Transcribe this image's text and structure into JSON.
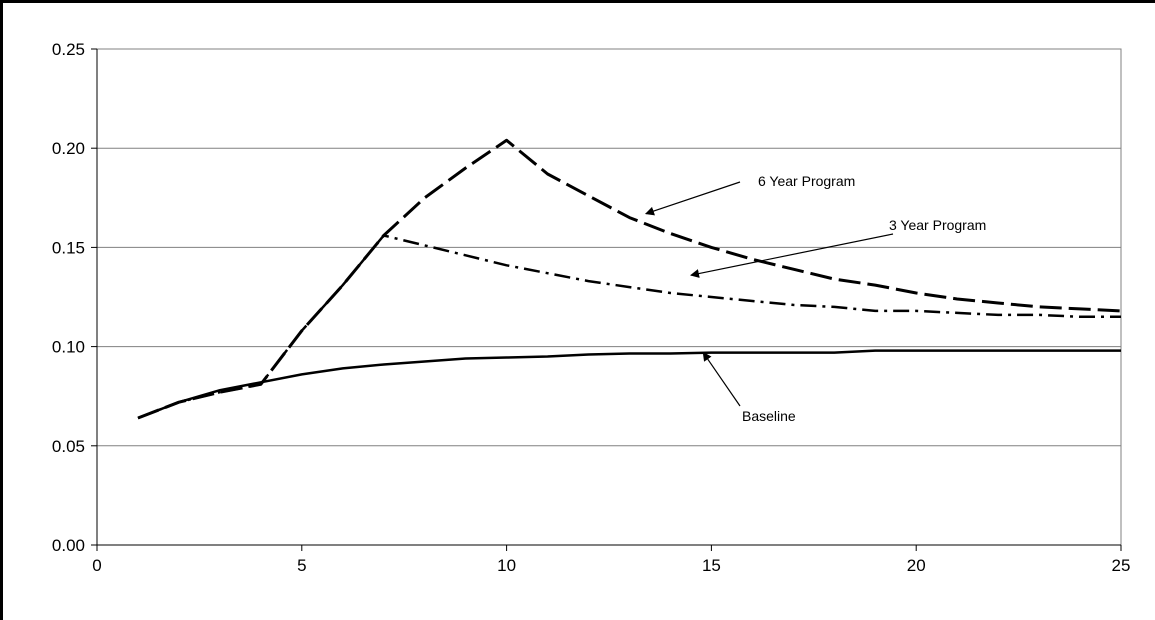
{
  "chart_data": {
    "type": "line",
    "title": "",
    "xlabel": "",
    "ylabel": "",
    "xlim": [
      0,
      25
    ],
    "ylim": [
      0,
      0.25
    ],
    "xticks": [
      "0",
      "5",
      "10",
      "15",
      "20",
      "25"
    ],
    "yticks": [
      "0.00",
      "0.05",
      "0.10",
      "0.15",
      "0.20",
      "0.25"
    ],
    "grid": "horizontal",
    "legend": "none",
    "series": [
      {
        "name": "Baseline",
        "style": "solid",
        "color": "#000000",
        "x": [
          1,
          2,
          3,
          4,
          5,
          6,
          7,
          8,
          9,
          10,
          11,
          12,
          13,
          14,
          15,
          16,
          17,
          18,
          19,
          20,
          21,
          22,
          23,
          24,
          25
        ],
        "y": [
          0.064,
          0.072,
          0.078,
          0.082,
          0.086,
          0.089,
          0.091,
          0.0925,
          0.094,
          0.0945,
          0.095,
          0.096,
          0.0965,
          0.0965,
          0.097,
          0.097,
          0.097,
          0.097,
          0.098,
          0.098,
          0.098,
          0.098,
          0.098,
          0.098,
          0.098
        ]
      },
      {
        "name": "3 Year Program",
        "style": "dash-dot",
        "color": "#000000",
        "x": [
          1,
          2,
          3,
          4,
          5,
          6,
          7,
          8,
          9,
          10,
          11,
          12,
          13,
          14,
          15,
          16,
          17,
          18,
          19,
          20,
          21,
          22,
          23,
          24,
          25
        ],
        "y": [
          0.064,
          0.072,
          0.077,
          0.081,
          0.108,
          0.131,
          0.156,
          0.151,
          0.146,
          0.141,
          0.137,
          0.133,
          0.13,
          0.127,
          0.125,
          0.123,
          0.121,
          0.12,
          0.118,
          0.118,
          0.117,
          0.116,
          0.116,
          0.115,
          0.115
        ]
      },
      {
        "name": "6 Year Program",
        "style": "dashed",
        "color": "#000000",
        "x": [
          1,
          2,
          3,
          4,
          5,
          6,
          7,
          8,
          9,
          10,
          11,
          12,
          13,
          14,
          15,
          16,
          17,
          18,
          19,
          20,
          21,
          22,
          23,
          24,
          25
        ],
        "y": [
          0.064,
          0.072,
          0.077,
          0.081,
          0.108,
          0.131,
          0.156,
          0.175,
          0.19,
          0.204,
          0.187,
          0.176,
          0.165,
          0.157,
          0.15,
          0.144,
          0.139,
          0.134,
          0.131,
          0.127,
          0.124,
          0.122,
          0.12,
          0.119,
          0.118
        ]
      }
    ],
    "annotations": [
      {
        "text": "6 Year Program",
        "series": "6 Year Program",
        "x_arrow": 13.4,
        "y_arrow": 0.167
      },
      {
        "text": "3 Year Program",
        "series": "3 Year Program",
        "x_arrow": 14.5,
        "y_arrow": 0.136
      },
      {
        "text": "Baseline",
        "series": "Baseline",
        "x_arrow": 14.8,
        "y_arrow": 0.097
      }
    ]
  }
}
